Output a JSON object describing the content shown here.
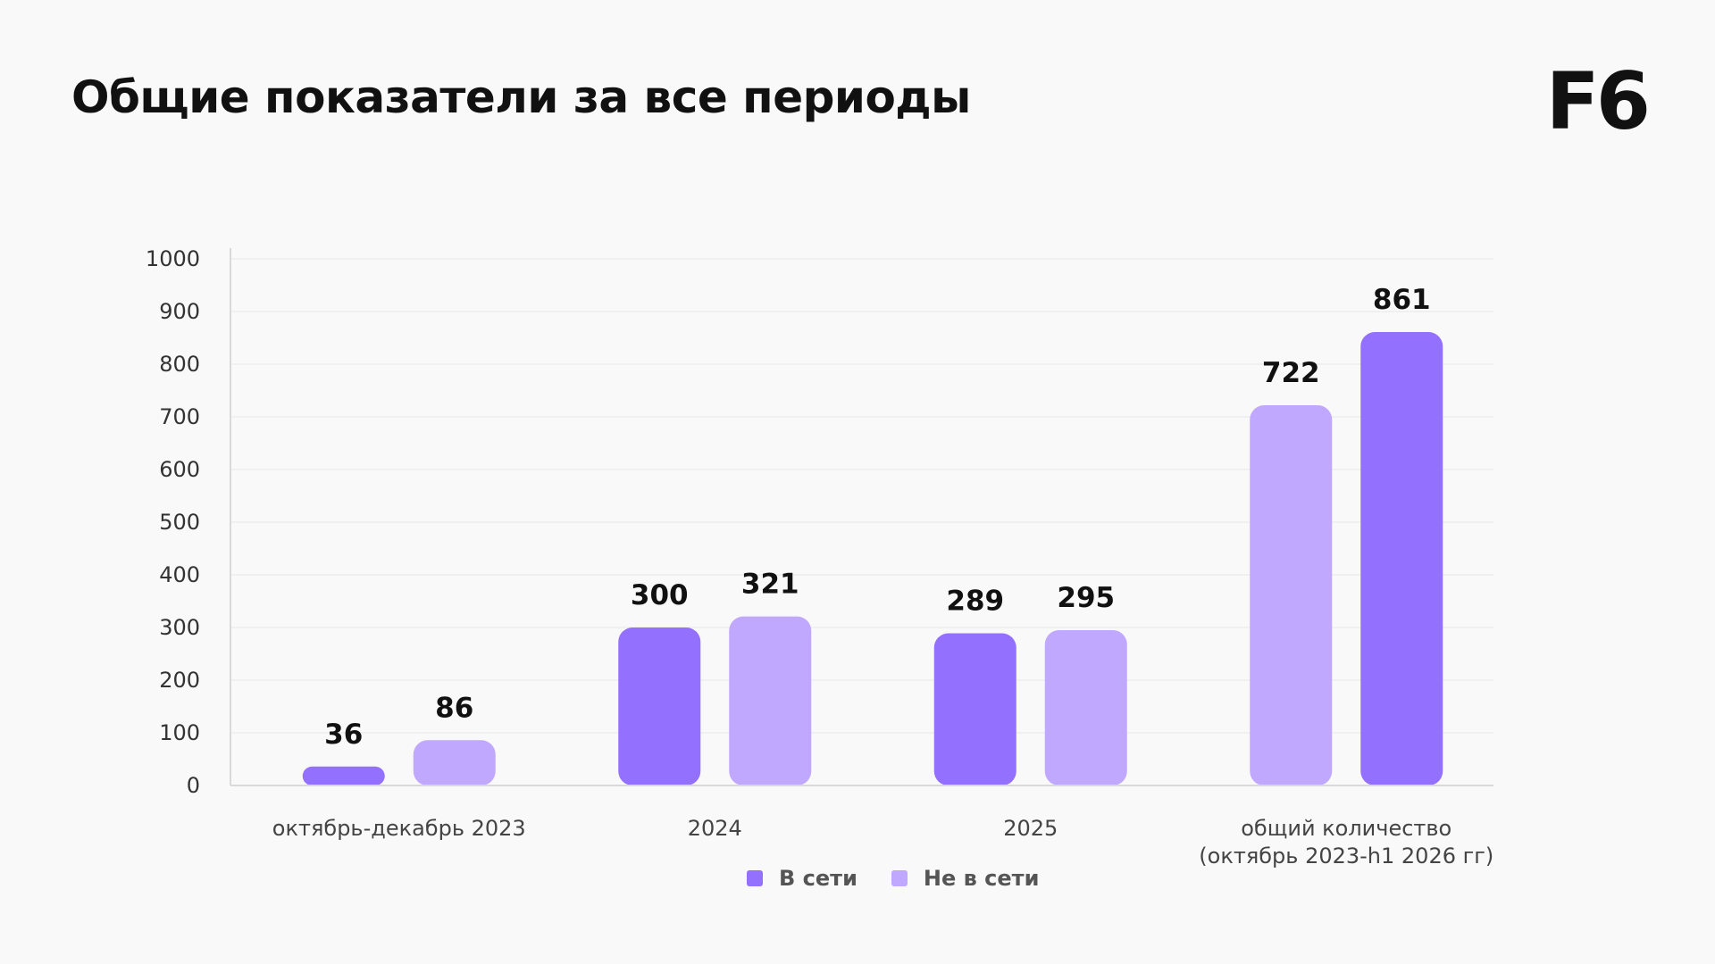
{
  "title": "Общие показатели за все периоды",
  "logo": "F6",
  "colors": {
    "online": "#9370fd",
    "offline": "#c0a8fe"
  },
  "chart_data": {
    "type": "bar",
    "title": "",
    "xlabel": "",
    "ylabel": "",
    "ylim": [
      0,
      1000
    ],
    "yticks": [
      0,
      100,
      200,
      300,
      400,
      500,
      600,
      700,
      800,
      900,
      1000
    ],
    "grid": true,
    "legend_position": "bottom-center",
    "categories": [
      [
        "октябрь-декабрь 2023"
      ],
      [
        "2024"
      ],
      [
        "2025"
      ],
      [
        "общий количество",
        "(октябрь 2023-h1 2026 гг)"
      ]
    ],
    "legend": [
      {
        "name": "В сети",
        "color": "#9370fd"
      },
      {
        "name": "Не в сети",
        "color": "#c0a8fe"
      }
    ],
    "bars": [
      [
        {
          "value": 36,
          "label": "36",
          "color": "#9370fd"
        },
        {
          "value": 86,
          "label": "86",
          "color": "#c0a8fe"
        }
      ],
      [
        {
          "value": 300,
          "label": "300",
          "color": "#9370fd"
        },
        {
          "value": 321,
          "label": "321",
          "color": "#c0a8fe"
        }
      ],
      [
        {
          "value": 289,
          "label": "289",
          "color": "#9370fd"
        },
        {
          "value": 295,
          "label": "295",
          "color": "#c0a8fe"
        }
      ],
      [
        {
          "value": 722,
          "label": "722",
          "color": "#c0a8fe"
        },
        {
          "value": 861,
          "label": "861",
          "color": "#9370fd"
        }
      ]
    ]
  }
}
